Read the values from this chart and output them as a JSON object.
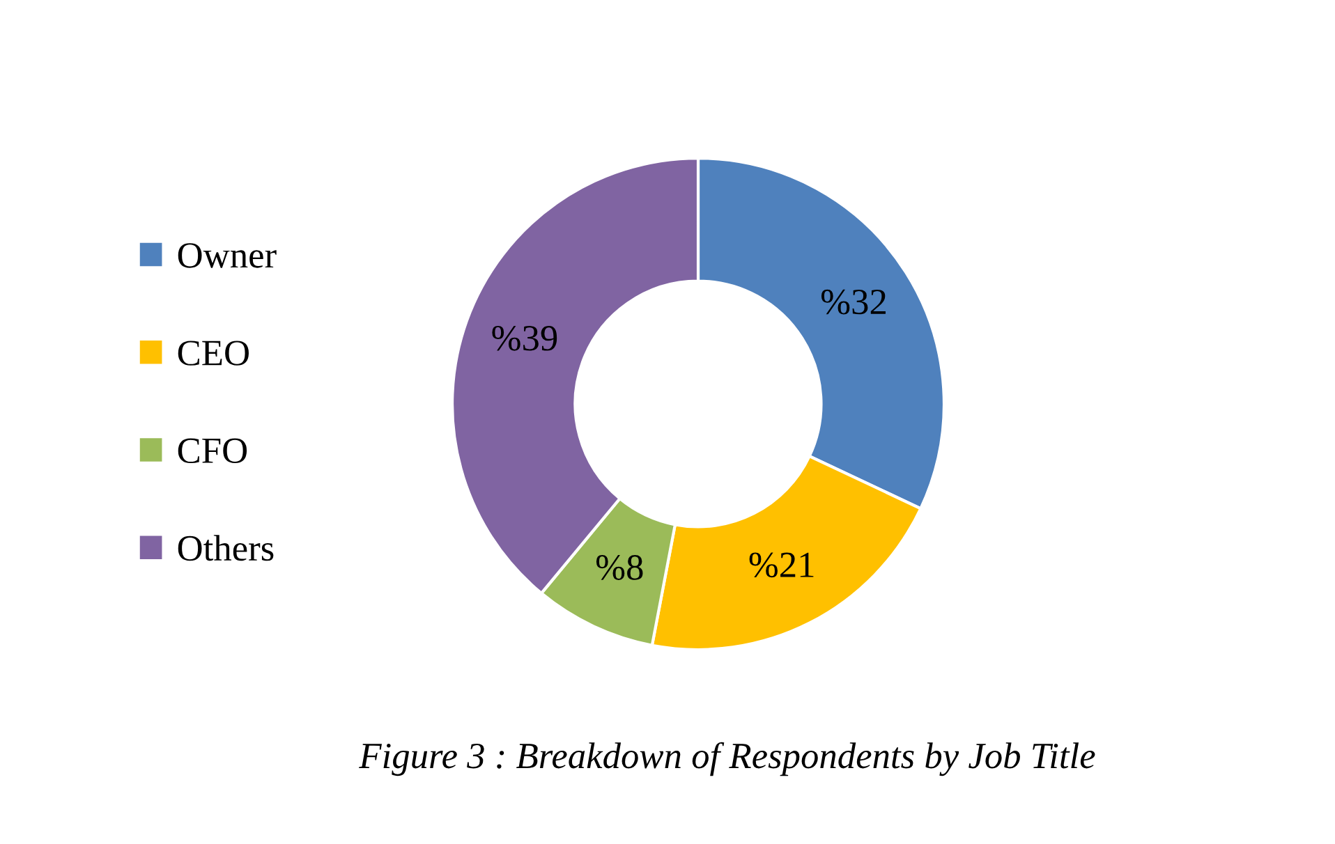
{
  "chart_data": {
    "type": "donut",
    "categories": [
      "Owner",
      "CEO",
      "CFO",
      "Others"
    ],
    "values": [
      32,
      21,
      8,
      39
    ],
    "value_labels": [
      "%32",
      "%21",
      "%8",
      "%39"
    ],
    "colors": [
      "#4f81bd",
      "#ffc000",
      "#9bbb59",
      "#8064a2"
    ],
    "legend": "left",
    "annotations": [
      "Figure 3 : Breakdown of Respondents by Job Title"
    ]
  }
}
